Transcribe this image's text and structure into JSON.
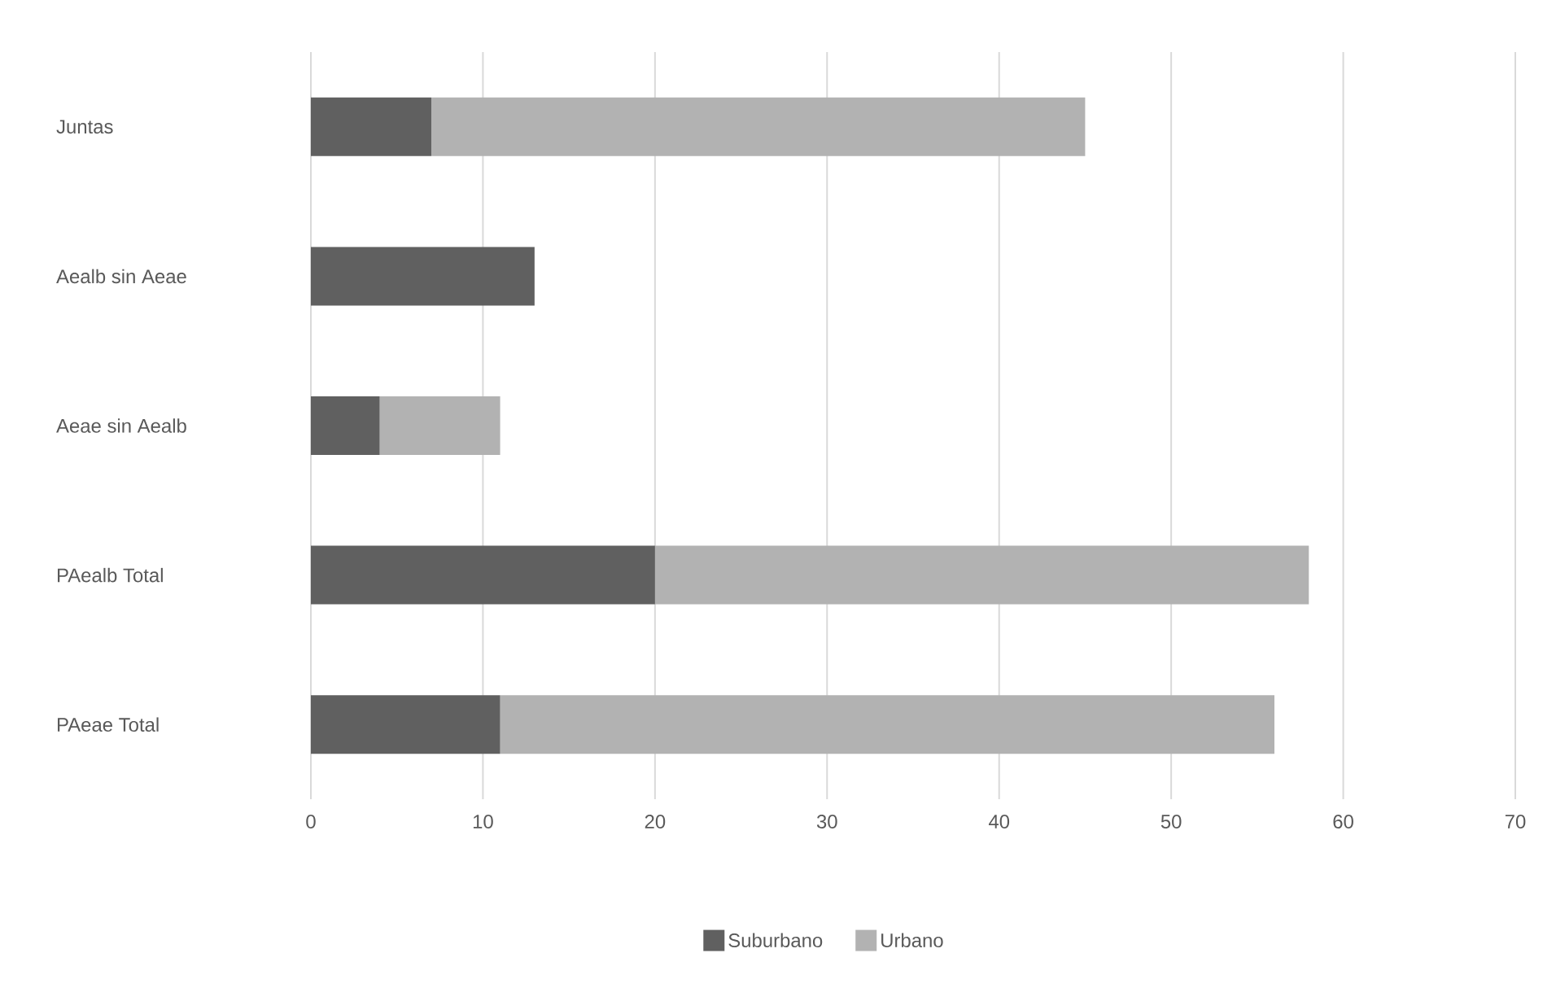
{
  "chart_data": {
    "type": "bar",
    "orientation": "horizontal",
    "stacked": true,
    "categories": [
      "Juntas",
      "Aealb sin Aeae",
      "Aeae sin Aealb",
      "PAealb Total",
      "PAeae Total"
    ],
    "series": [
      {
        "name": "Suburbano",
        "color": "#606060",
        "values": [
          7,
          13,
          4,
          20,
          11
        ]
      },
      {
        "name": "Urbano",
        "color": "#b2b2b2",
        "values": [
          38,
          0,
          7,
          38,
          45
        ]
      }
    ],
    "xlim": [
      0,
      70
    ],
    "xticks": [
      0,
      10,
      20,
      30,
      40,
      50,
      60,
      70
    ],
    "grid": "x",
    "legend": "bottom"
  }
}
